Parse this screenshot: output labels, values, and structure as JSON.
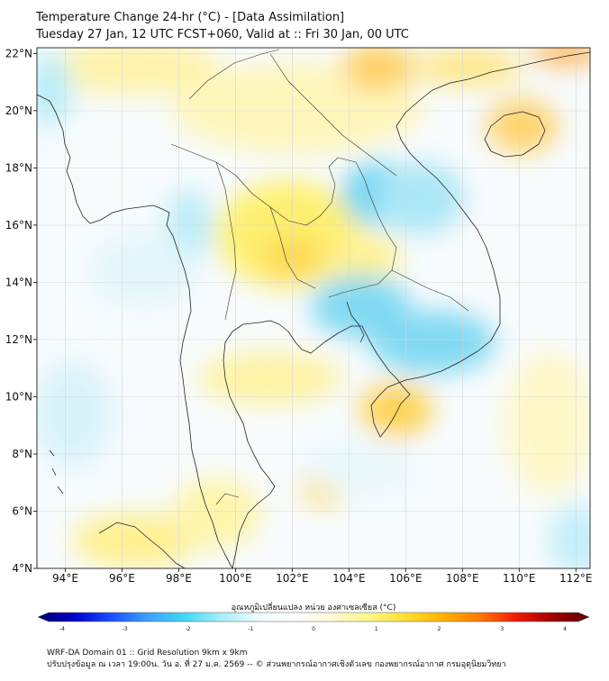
{
  "title": {
    "line1": "Temperature Change 24-hr (°C) - [Data Assimilation]",
    "line2": "Tuesday 27 Jan, 12 UTC FCST+060, Valid at :: Fri 30 Jan, 00 UTC"
  },
  "map": {
    "lon_range": [
      93,
      112.5
    ],
    "lat_range": [
      4,
      22.2
    ],
    "lon_ticks": [
      {
        "value": 94,
        "label": "94°E"
      },
      {
        "value": 96,
        "label": "96°E"
      },
      {
        "value": 98,
        "label": "98°E"
      },
      {
        "value": 100,
        "label": "100°E"
      },
      {
        "value": 102,
        "label": "102°E"
      },
      {
        "value": 104,
        "label": "104°E"
      },
      {
        "value": 106,
        "label": "106°E"
      },
      {
        "value": 108,
        "label": "108°E"
      },
      {
        "value": 110,
        "label": "110°E"
      },
      {
        "value": 112,
        "label": "112°E"
      }
    ],
    "lat_ticks": [
      {
        "value": 4,
        "label": "4°N"
      },
      {
        "value": 6,
        "label": "6°N"
      },
      {
        "value": 8,
        "label": "8°N"
      },
      {
        "value": 10,
        "label": "10°N"
      },
      {
        "value": 12,
        "label": "12°N"
      },
      {
        "value": 14,
        "label": "14°N"
      },
      {
        "value": 16,
        "label": "16°N"
      },
      {
        "value": 18,
        "label": "18°N"
      },
      {
        "value": 20,
        "label": "20°N"
      },
      {
        "value": 22,
        "label": "22°N"
      }
    ]
  },
  "colorbar": {
    "title": "อุณหภูมิเปลี่ยนแปลง หน่วย องศาเซลเซียส (°C)",
    "range": [
      -4,
      4
    ],
    "ticks": [
      {
        "value": -4,
        "label": "-4"
      },
      {
        "value": -3,
        "label": "-3"
      },
      {
        "value": -2,
        "label": "-2"
      },
      {
        "value": -1,
        "label": "-1"
      },
      {
        "value": 0,
        "label": "0"
      },
      {
        "value": 1,
        "label": "1"
      },
      {
        "value": 2,
        "label": "2"
      },
      {
        "value": 3,
        "label": "3"
      },
      {
        "value": 4,
        "label": "4"
      }
    ],
    "colors": [
      "#000066",
      "#0000cc",
      "#1a4fff",
      "#3fa0ff",
      "#40d8f5",
      "#a6f0fa",
      "#eefcff",
      "#ffffff",
      "#fffbd8",
      "#fff58a",
      "#ffe033",
      "#ffb300",
      "#ff7a00",
      "#f21a00",
      "#a00000",
      "#5a0000"
    ]
  },
  "footer": {
    "line1": "WRF-DA Domain 01 :: Grid Resolution 9km x 9km",
    "line2": "ปรับปรุงข้อมูล ณ เวลา 19:00น. วัน อ. ที่ 27 ม.ค. 2569 -- © ส่วนพยากรณ์อากาศเชิงตัวเลข กองพยากรณ์อากาศ กรมอุตุนิยมวิทยา"
  }
}
